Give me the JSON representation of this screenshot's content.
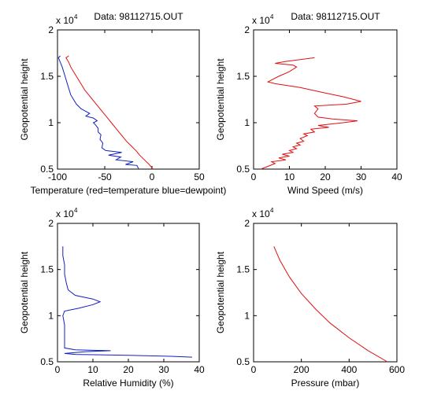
{
  "chart_data": [
    {
      "type": "line",
      "title": "Data: 98112715.OUT",
      "exponent_label": "x 10",
      "exponent_power": "4",
      "xlabel": "Temperature (red=temperature blue=dewpoint)",
      "ylabel": "Geopotential height",
      "xlim": [
        -100,
        50
      ],
      "ylim": [
        0.5,
        2
      ],
      "xticks": [
        -100,
        -50,
        0,
        50
      ],
      "xtick_labels": [
        "-100",
        "-50",
        "0",
        "50"
      ],
      "yticks": [
        0.5,
        1,
        1.5,
        2
      ],
      "ytick_labels": [
        "0.5",
        "1",
        "1.5",
        "2"
      ],
      "series": [
        {
          "color": "#e01010",
          "points": [
            [
              1,
              0.5
            ],
            [
              -3,
              0.55
            ],
            [
              -8,
              0.6
            ],
            [
              -13,
              0.65
            ],
            [
              -17,
              0.7
            ],
            [
              -22,
              0.75
            ],
            [
              -27,
              0.8
            ],
            [
              -31,
              0.85
            ],
            [
              -35,
              0.9
            ],
            [
              -39,
              0.95
            ],
            [
              -43,
              1.0
            ],
            [
              -47,
              1.05
            ],
            [
              -51,
              1.1
            ],
            [
              -55,
              1.15
            ],
            [
              -59,
              1.2
            ],
            [
              -63,
              1.25
            ],
            [
              -67,
              1.3
            ],
            [
              -71,
              1.35
            ],
            [
              -74,
              1.4
            ],
            [
              -77,
              1.45
            ],
            [
              -80,
              1.5
            ],
            [
              -83,
              1.55
            ],
            [
              -86,
              1.6
            ],
            [
              -88,
              1.65
            ],
            [
              -91,
              1.7
            ],
            [
              -88,
              1.72
            ]
          ]
        },
        {
          "color": "#1020c0",
          "points": [
            [
              -14,
              0.5
            ],
            [
              -16,
              0.54
            ],
            [
              -28,
              0.55
            ],
            [
              -20,
              0.58
            ],
            [
              -38,
              0.6
            ],
            [
              -33,
              0.63
            ],
            [
              -46,
              0.65
            ],
            [
              -32,
              0.68
            ],
            [
              -49,
              0.7
            ],
            [
              -53,
              0.73
            ],
            [
              -52,
              0.78
            ],
            [
              -55,
              0.82
            ],
            [
              -54,
              0.87
            ],
            [
              -57,
              0.9
            ],
            [
              -57,
              0.94
            ],
            [
              -60,
              0.98
            ],
            [
              -62,
              1.0
            ],
            [
              -58,
              1.02
            ],
            [
              -62,
              1.05
            ],
            [
              -70,
              1.07
            ],
            [
              -66,
              1.1
            ],
            [
              -75,
              1.15
            ],
            [
              -80,
              1.2
            ],
            [
              -86,
              1.3
            ],
            [
              -89,
              1.4
            ],
            [
              -92,
              1.5
            ],
            [
              -95,
              1.6
            ],
            [
              -99,
              1.7
            ],
            [
              -97,
              1.72
            ]
          ]
        }
      ]
    },
    {
      "type": "line",
      "title": "Data: 98112715.OUT",
      "exponent_label": "x 10",
      "exponent_power": "4",
      "xlabel": "Wind Speed (m/s)",
      "ylabel": "Geopotential height",
      "xlim": [
        0,
        40
      ],
      "ylim": [
        0.5,
        2
      ],
      "xticks": [
        0,
        10,
        20,
        30,
        40
      ],
      "xtick_labels": [
        "0",
        "10",
        "20",
        "30",
        "40"
      ],
      "yticks": [
        0.5,
        1,
        1.5,
        2
      ],
      "ytick_labels": [
        "0.5",
        "1",
        "1.5",
        "2"
      ],
      "series": [
        {
          "color": "#e01010",
          "points": [
            [
              2,
              0.5
            ],
            [
              4,
              0.53
            ],
            [
              6,
              0.56
            ],
            [
              5,
              0.58
            ],
            [
              9,
              0.6
            ],
            [
              7,
              0.62
            ],
            [
              10,
              0.64
            ],
            [
              8,
              0.66
            ],
            [
              11,
              0.68
            ],
            [
              10,
              0.7
            ],
            [
              12,
              0.72
            ],
            [
              11,
              0.74
            ],
            [
              13,
              0.76
            ],
            [
              12,
              0.78
            ],
            [
              14,
              0.8
            ],
            [
              13,
              0.83
            ],
            [
              15,
              0.86
            ],
            [
              14,
              0.88
            ],
            [
              17,
              0.9
            ],
            [
              16,
              0.93
            ],
            [
              21,
              0.95
            ],
            [
              18,
              0.97
            ],
            [
              25,
              1.0
            ],
            [
              29,
              1.02
            ],
            [
              22,
              1.04
            ],
            [
              18,
              1.06
            ],
            [
              17,
              1.1
            ],
            [
              18,
              1.15
            ],
            [
              17,
              1.18
            ],
            [
              26,
              1.2
            ],
            [
              30,
              1.23
            ],
            [
              25,
              1.28
            ],
            [
              20,
              1.32
            ],
            [
              13,
              1.38
            ],
            [
              6,
              1.42
            ],
            [
              4,
              1.44
            ],
            [
              7,
              1.5
            ],
            [
              10,
              1.55
            ],
            [
              12,
              1.6
            ],
            [
              11,
              1.62
            ],
            [
              6,
              1.64
            ],
            [
              9,
              1.66
            ],
            [
              17,
              1.7
            ]
          ]
        }
      ]
    },
    {
      "type": "line",
      "title": "",
      "exponent_label": "x 10",
      "exponent_power": "4",
      "xlabel": "Relative Humidity (%)",
      "ylabel": "Geopotential height",
      "xlim": [
        0,
        40
      ],
      "ylim": [
        0.5,
        2
      ],
      "xticks": [
        0,
        10,
        20,
        30,
        40
      ],
      "xtick_labels": [
        "0",
        "10",
        "20",
        "30",
        "40"
      ],
      "yticks": [
        0.5,
        1,
        1.5,
        2
      ],
      "ytick_labels": [
        "0.5",
        "1",
        "1.5",
        "2"
      ],
      "series": [
        {
          "color": "#1020c0",
          "points": [
            [
              38,
              0.55
            ],
            [
              32,
              0.56
            ],
            [
              20,
              0.57
            ],
            [
              5,
              0.58
            ],
            [
              2,
              0.59
            ],
            [
              8,
              0.61
            ],
            [
              15,
              0.62
            ],
            [
              5,
              0.63
            ],
            [
              2,
              0.65
            ],
            [
              2,
              0.7
            ],
            [
              2,
              0.8
            ],
            [
              2,
              0.9
            ],
            [
              1.5,
              1.0
            ],
            [
              2,
              1.05
            ],
            [
              6,
              1.08
            ],
            [
              10,
              1.12
            ],
            [
              12,
              1.15
            ],
            [
              10,
              1.18
            ],
            [
              5,
              1.22
            ],
            [
              3,
              1.28
            ],
            [
              2.5,
              1.35
            ],
            [
              2,
              1.45
            ],
            [
              2,
              1.55
            ],
            [
              1.5,
              1.65
            ],
            [
              1.5,
              1.75
            ]
          ]
        }
      ]
    },
    {
      "type": "line",
      "title": "",
      "exponent_label": "x 10",
      "exponent_power": "4",
      "xlabel": "Pressure (mbar)",
      "ylabel": "Geopotential height",
      "xlim": [
        0,
        600
      ],
      "ylim": [
        0.5,
        2
      ],
      "xticks": [
        0,
        200,
        400,
        600
      ],
      "xtick_labels": [
        "0",
        "200",
        "400",
        "600"
      ],
      "yticks": [
        0.5,
        1,
        1.5,
        2
      ],
      "ytick_labels": [
        "0.5",
        "1",
        "1.5",
        "2"
      ],
      "series": [
        {
          "color": "#e01010",
          "points": [
            [
              560,
              0.5
            ],
            [
              480,
              0.62
            ],
            [
              400,
              0.76
            ],
            [
              320,
              0.92
            ],
            [
              260,
              1.07
            ],
            [
              200,
              1.24
            ],
            [
              150,
              1.42
            ],
            [
              110,
              1.6
            ],
            [
              85,
              1.75
            ]
          ]
        }
      ]
    }
  ]
}
